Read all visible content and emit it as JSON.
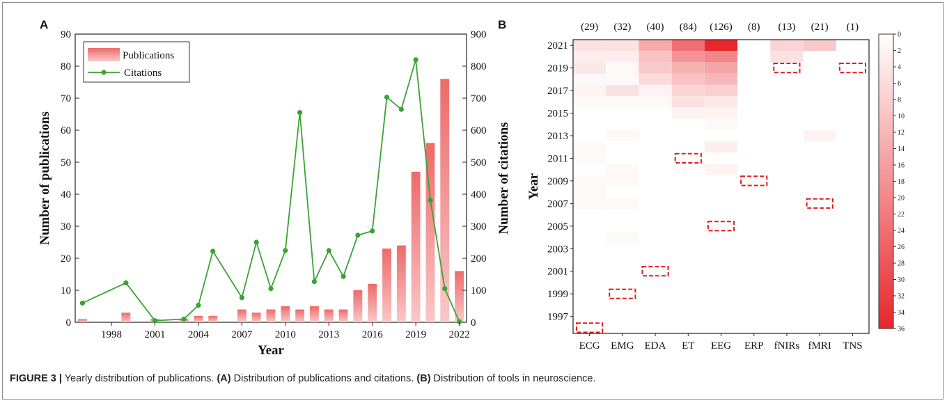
{
  "caption": {
    "label": "FIGURE 3 |",
    "text": " Yearly distribution of publications. ",
    "part_a_label": "(A)",
    "part_a_text": " Distribution of publications and citations. ",
    "part_b_label": "(B)",
    "part_b_text": " Distribution of tools in neuroscience."
  },
  "chart_data": [
    {
      "panel": "A",
      "type": "bar",
      "xlabel": "Year",
      "ylabel": "Number of publications",
      "y2label": "Number of citations",
      "xlim": [
        1995.5,
        2022.5
      ],
      "ylim": [
        0,
        90
      ],
      "y2lim": [
        0,
        900
      ],
      "xticks": [
        1998,
        2001,
        2004,
        2007,
        2010,
        2013,
        2016,
        2019,
        2022
      ],
      "yticks": [
        0,
        10,
        20,
        30,
        40,
        50,
        60,
        70,
        80,
        90
      ],
      "y2ticks": [
        0,
        100,
        200,
        300,
        400,
        500,
        600,
        700,
        800,
        900
      ],
      "legend_position": "top-left",
      "bar_color": "#f28080",
      "line_color": "#3aa335",
      "series": [
        {
          "name": "Publications",
          "kind": "bar",
          "x": [
            1996,
            1997,
            1998,
            1999,
            2000,
            2001,
            2002,
            2003,
            2004,
            2005,
            2006,
            2007,
            2008,
            2009,
            2010,
            2011,
            2012,
            2013,
            2014,
            2015,
            2016,
            2017,
            2018,
            2019,
            2020,
            2021,
            2022
          ],
          "values": [
            1,
            0,
            0,
            3,
            0,
            1,
            0,
            1,
            2,
            2,
            0,
            4,
            3,
            4,
            5,
            4,
            5,
            4,
            4,
            10,
            12,
            23,
            24,
            47,
            56,
            76,
            16
          ]
        },
        {
          "name": "Citations",
          "kind": "line",
          "axis": "right",
          "x": [
            1996,
            1999,
            2001,
            2003,
            2004,
            2005,
            2007,
            2008,
            2009,
            2010,
            2011,
            2012,
            2013,
            2014,
            2015,
            2016,
            2017,
            2018,
            2019,
            2020,
            2021,
            2022
          ],
          "values": [
            60,
            123,
            5,
            10,
            53,
            222,
            77,
            250,
            105,
            224,
            655,
            127,
            224,
            143,
            272,
            285,
            703,
            665,
            820,
            381,
            105,
            2
          ]
        }
      ]
    },
    {
      "panel": "B",
      "type": "heatmap",
      "ylabel": "Year",
      "categories": [
        "ECG",
        "EMG",
        "EDA",
        "ET",
        "EEG",
        "ERP",
        "fNIRs",
        "fMRI",
        "TNS"
      ],
      "column_totals": [
        "(29)",
        "(32)",
        "(40)",
        "(84)",
        "(126)",
        "(8)",
        "(13)",
        "(21)",
        "(1)"
      ],
      "years": [
        1996,
        1997,
        1998,
        1999,
        2000,
        2001,
        2002,
        2003,
        2004,
        2005,
        2006,
        2007,
        2008,
        2009,
        2010,
        2011,
        2012,
        2013,
        2014,
        2015,
        2016,
        2017,
        2018,
        2019,
        2020,
        2021
      ],
      "yticks": [
        1997,
        1999,
        2001,
        2003,
        2005,
        2007,
        2009,
        2011,
        2013,
        2015,
        2017,
        2019,
        2021
      ],
      "colorbar_ticks": [
        0,
        2,
        4,
        6,
        8,
        10,
        12,
        14,
        16,
        18,
        20,
        22,
        24,
        26,
        28,
        30,
        32,
        34,
        36
      ],
      "colorbar_range": [
        0,
        36
      ],
      "color_low": "#ffffff",
      "color_high": "#e8262b",
      "first_use_marker_color": "#e31a1c",
      "first_use_year": [
        1996,
        1999,
        2001,
        2011,
        2005,
        2009,
        2019,
        2007,
        2019
      ],
      "values": [
        [
          0,
          0,
          0,
          0,
          0,
          0,
          0,
          0,
          0
        ],
        [
          0,
          0,
          0,
          0,
          0,
          0,
          0,
          0,
          0
        ],
        [
          0,
          0,
          0,
          0,
          0,
          0,
          0,
          0,
          0
        ],
        [
          0,
          0,
          0,
          0,
          0,
          0,
          0,
          0,
          0
        ],
        [
          0,
          0,
          0,
          0,
          0,
          0,
          0,
          0,
          0
        ],
        [
          0,
          0,
          0,
          0,
          0,
          0,
          0,
          0,
          0
        ],
        [
          0,
          0,
          0,
          0,
          0,
          0,
          0,
          0,
          0
        ],
        [
          0,
          0,
          0,
          0,
          0,
          0,
          0,
          0,
          0
        ],
        [
          0,
          1,
          0,
          0,
          0,
          0,
          0,
          0,
          0
        ],
        [
          0,
          0,
          0,
          0,
          0,
          0,
          0,
          0,
          0
        ],
        [
          0,
          0,
          0,
          0,
          0,
          0,
          0,
          0,
          0
        ],
        [
          1,
          1,
          0,
          0,
          0,
          0,
          0,
          0,
          0
        ],
        [
          1,
          0,
          0,
          0,
          0,
          0,
          0,
          0,
          0
        ],
        [
          1,
          1,
          0,
          0,
          0,
          0,
          0,
          0,
          0
        ],
        [
          0,
          1,
          0,
          0,
          2,
          0,
          0,
          0,
          0
        ],
        [
          1,
          0,
          0,
          0,
          0,
          0,
          0,
          0,
          0
        ],
        [
          1,
          0,
          0,
          0,
          3,
          0,
          0,
          0,
          0
        ],
        [
          0,
          1,
          0,
          0,
          0,
          0,
          0,
          2,
          0
        ],
        [
          0,
          0,
          0,
          0,
          1,
          0,
          0,
          0,
          0
        ],
        [
          0,
          0,
          0,
          2,
          2,
          0,
          0,
          0,
          0
        ],
        [
          1,
          1,
          1,
          5,
          4,
          0,
          0,
          0,
          0
        ],
        [
          2,
          5,
          2,
          7,
          8,
          0,
          0,
          0,
          0
        ],
        [
          1,
          1,
          6,
          10,
          12,
          0,
          0,
          0,
          0
        ],
        [
          4,
          1,
          9,
          13,
          15,
          0,
          0,
          0,
          0
        ],
        [
          3,
          3,
          10,
          18,
          20,
          0,
          5,
          0,
          0
        ],
        [
          5,
          5,
          14,
          24,
          36,
          0,
          7,
          9,
          0
        ]
      ]
    }
  ]
}
